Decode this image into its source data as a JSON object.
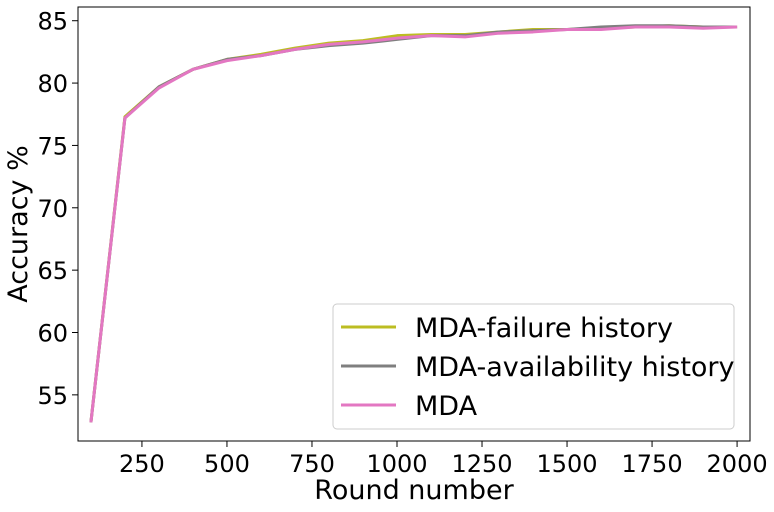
{
  "chart_data": {
    "type": "line",
    "title": "",
    "xlabel": "Round number",
    "ylabel": "Accuracy %",
    "xlim": [
      62,
      2038
    ],
    "ylim": [
      51.3,
      86.1
    ],
    "xticks": [
      250,
      500,
      750,
      1000,
      1250,
      1500,
      1750,
      2000
    ],
    "yticks": [
      55,
      60,
      65,
      70,
      75,
      80,
      85
    ],
    "grid": false,
    "legend_position": "lower-right",
    "x": [
      100,
      200,
      300,
      400,
      500,
      600,
      700,
      800,
      900,
      1000,
      1100,
      1200,
      1300,
      1400,
      1500,
      1600,
      1700,
      1800,
      1900,
      2000
    ],
    "series": [
      {
        "name": "MDA-failure history",
        "color": "#bcbd22",
        "values": [
          52.8,
          77.3,
          79.7,
          81.1,
          81.9,
          82.3,
          82.8,
          83.2,
          83.4,
          83.8,
          83.9,
          83.9,
          84.1,
          84.3,
          84.3,
          84.4,
          84.5,
          84.6,
          84.5,
          84.5
        ]
      },
      {
        "name": "MDA-availability history",
        "color": "#7f7f7f",
        "values": [
          52.8,
          77.2,
          79.7,
          81.1,
          81.9,
          82.2,
          82.7,
          83.0,
          83.2,
          83.5,
          83.8,
          83.8,
          84.1,
          84.2,
          84.3,
          84.5,
          84.6,
          84.6,
          84.5,
          84.5
        ]
      },
      {
        "name": "MDA",
        "color": "#e377c2",
        "values": [
          52.8,
          77.2,
          79.6,
          81.1,
          81.8,
          82.2,
          82.7,
          83.1,
          83.3,
          83.6,
          83.8,
          83.7,
          84.0,
          84.1,
          84.3,
          84.3,
          84.5,
          84.5,
          84.4,
          84.5
        ]
      }
    ]
  }
}
